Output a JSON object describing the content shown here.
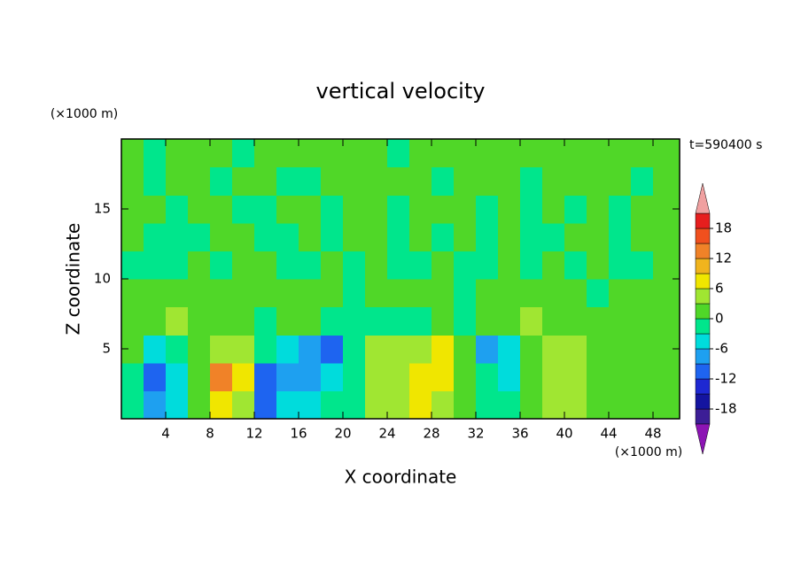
{
  "chart_data": {
    "type": "contour",
    "title": "vertical velocity",
    "x_label": "X coordinate",
    "y_label": "Z coordinate",
    "x_unit": "(×1000 m)",
    "y_unit": "(×1000 m)",
    "annotation": "t=590400 s",
    "xlim": [
      0,
      50.4
    ],
    "ylim": [
      0,
      20
    ],
    "xticks": [
      4,
      8,
      12,
      16,
      20,
      24,
      28,
      32,
      36,
      40,
      44,
      48
    ],
    "yticks": [
      5,
      10,
      15
    ],
    "x": [
      1,
      3,
      5,
      7,
      9,
      11,
      13,
      15,
      17,
      19,
      21,
      23,
      25,
      27,
      29,
      31,
      33,
      35,
      37,
      39,
      41,
      43,
      45,
      47,
      49
    ],
    "y": [
      1,
      3,
      5,
      7,
      9,
      11,
      13,
      15,
      17,
      19
    ],
    "z": [
      [
        -1,
        -7,
        -4,
        1,
        7,
        4,
        -10,
        -5,
        -4,
        -2,
        -1,
        3,
        4,
        6,
        5,
        1,
        -1,
        -2,
        1,
        3,
        4,
        2,
        1,
        1,
        2
      ],
      [
        -2,
        -11,
        -6,
        1,
        14,
        8,
        -12,
        -9,
        -7,
        -5,
        -2,
        5,
        5,
        8,
        7,
        1,
        -3,
        -4,
        1,
        4,
        5,
        1,
        1,
        2,
        1
      ],
      [
        1,
        -5,
        -2,
        1,
        4,
        3,
        -2,
        -4,
        -8,
        -11,
        -2,
        4,
        5,
        4,
        6,
        1,
        -8,
        -4,
        2,
        4,
        3,
        1,
        1,
        1,
        2
      ],
      [
        1,
        1,
        4,
        1,
        1,
        1,
        -1,
        1,
        1,
        -3,
        -1,
        -2,
        -1,
        -1,
        1,
        -2,
        1,
        1,
        4,
        1,
        1,
        1,
        2,
        1,
        1
      ],
      [
        1,
        1,
        1,
        1,
        1,
        2,
        1,
        1,
        1,
        1,
        -1,
        1,
        1,
        1,
        1,
        -1,
        1,
        1,
        1,
        1,
        1,
        -1,
        1,
        1,
        1
      ],
      [
        -1,
        -1,
        -1,
        1,
        -1,
        1,
        1,
        -1,
        -1,
        1,
        -1,
        1,
        -1,
        -1,
        1,
        -1,
        -1,
        1,
        -1,
        1,
        -1,
        1,
        -1,
        -1,
        1
      ],
      [
        1,
        -1,
        -1,
        -1,
        1,
        1,
        -1,
        -1,
        1,
        -1,
        1,
        1,
        -1,
        1,
        -1,
        1,
        -1,
        1,
        -1,
        -1,
        1,
        1,
        -1,
        1,
        1
      ],
      [
        1,
        1,
        -1,
        1,
        1,
        -1,
        -1,
        1,
        1,
        -1,
        1,
        1,
        -1,
        1,
        1,
        1,
        -1,
        1,
        -1,
        1,
        -1,
        1,
        -1,
        1,
        1
      ],
      [
        1,
        -1,
        1,
        1,
        -1,
        1,
        1,
        -1,
        -1,
        1,
        1,
        1,
        1,
        1,
        -1,
        1,
        1,
        1,
        -1,
        1,
        1,
        1,
        1,
        -1,
        1
      ],
      [
        1,
        -1,
        1,
        1,
        1,
        -1,
        1,
        1,
        1,
        1,
        1,
        1,
        -1,
        1,
        1,
        1,
        1,
        1,
        1,
        1,
        1,
        1,
        1,
        1,
        1
      ]
    ],
    "levels": [
      -21,
      -18,
      -15,
      -12,
      -9,
      -6,
      -3,
      0,
      3,
      6,
      9,
      12,
      15,
      18,
      21
    ],
    "colors": [
      "#8c14b4",
      "#3c1e96",
      "#1414a0",
      "#1e28d2",
      "#1e64f0",
      "#1ea0f0",
      "#00dcdc",
      "#00e68c",
      "#50d728",
      "#a0e632",
      "#f0e600",
      "#f0b41e",
      "#f08228",
      "#f0501e",
      "#e61e1e",
      "#f0a0a0"
    ],
    "colorbar_ticks": [
      18,
      12,
      6,
      0,
      -6,
      -12,
      -18
    ]
  }
}
